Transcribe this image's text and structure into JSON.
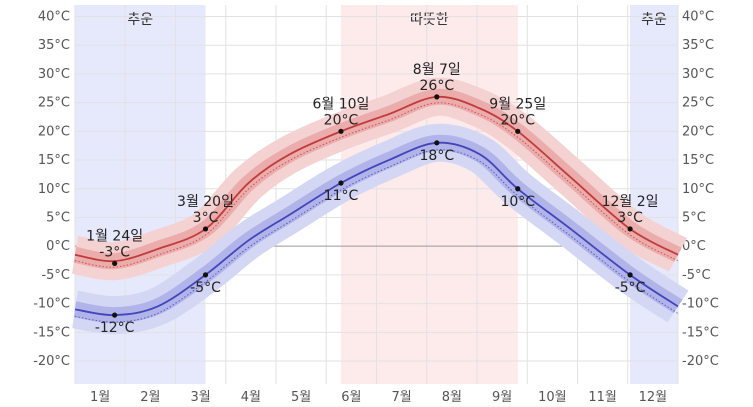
{
  "chart_data": {
    "type": "area",
    "title": "",
    "xlabel": "",
    "ylabel": "",
    "x_domain_days": [
      0,
      365
    ],
    "ylim": [
      -24,
      42
    ],
    "y_ticks": [
      40,
      35,
      30,
      25,
      20,
      15,
      10,
      5,
      0,
      -5,
      -10,
      -15,
      -20
    ],
    "y_unit": "°C",
    "month_labels": [
      "1월",
      "2월",
      "3월",
      "4월",
      "5월",
      "6월",
      "7월",
      "8월",
      "9월",
      "10월",
      "11월",
      "12월"
    ],
    "seasons": [
      {
        "label": "추운",
        "start_day": 0,
        "end_day": 79,
        "color": "#e6e8fb"
      },
      {
        "label": "따뜻한",
        "start_day": 161,
        "end_day": 268,
        "color": "#fdeaea"
      },
      {
        "label": "추운",
        "start_day": 336,
        "end_day": 365,
        "color": "#e6e8fb"
      }
    ],
    "series": [
      {
        "role": "high",
        "color": "#c23b3b",
        "band_inner": "#e9a6a6",
        "band_outer": "#f5d2d2",
        "points": [
          [
            0,
            -1.5
          ],
          [
            24,
            -2.6
          ],
          [
            50,
            -0.5
          ],
          [
            79,
            3
          ],
          [
            105,
            11
          ],
          [
            130,
            16
          ],
          [
            161,
            20
          ],
          [
            190,
            23
          ],
          [
            219,
            26
          ],
          [
            245,
            24
          ],
          [
            268,
            20
          ],
          [
            300,
            12
          ],
          [
            336,
            3
          ],
          [
            365,
            -1.5
          ]
        ]
      },
      {
        "role": "low",
        "color": "#4444bb",
        "band_inner": "#a9aee6",
        "band_outer": "#d4d7f3",
        "points": [
          [
            0,
            -11
          ],
          [
            24,
            -12
          ],
          [
            50,
            -10.5
          ],
          [
            79,
            -5
          ],
          [
            105,
            1
          ],
          [
            130,
            5.5
          ],
          [
            161,
            11
          ],
          [
            190,
            15
          ],
          [
            219,
            18
          ],
          [
            245,
            16
          ],
          [
            268,
            10
          ],
          [
            300,
            3
          ],
          [
            336,
            -5
          ],
          [
            365,
            -10.5
          ]
        ]
      }
    ],
    "annotations": [
      {
        "series": "high",
        "day": 24,
        "value": -3,
        "date": "1월 24일",
        "temp": "-3°C",
        "pos": "above"
      },
      {
        "series": "low",
        "day": 24,
        "value": -12,
        "date": "",
        "temp": "-12°C",
        "pos": "below"
      },
      {
        "series": "high",
        "day": 79,
        "value": 3,
        "date": "3월 20일",
        "temp": "3°C",
        "pos": "above"
      },
      {
        "series": "low",
        "day": 79,
        "value": -5,
        "date": "",
        "temp": "-5°C",
        "pos": "below"
      },
      {
        "series": "high",
        "day": 161,
        "value": 20,
        "date": "6월 10일",
        "temp": "20°C",
        "pos": "above"
      },
      {
        "series": "low",
        "day": 161,
        "value": 11,
        "date": "",
        "temp": "11°C",
        "pos": "below"
      },
      {
        "series": "high",
        "day": 219,
        "value": 26,
        "date": "8월 7일",
        "temp": "26°C",
        "pos": "above"
      },
      {
        "series": "low",
        "day": 219,
        "value": 18,
        "date": "",
        "temp": "18°C",
        "pos": "below"
      },
      {
        "series": "high",
        "day": 268,
        "value": 20,
        "date": "9월 25일",
        "temp": "20°C",
        "pos": "above"
      },
      {
        "series": "low",
        "day": 268,
        "value": 10,
        "date": "",
        "temp": "10°C",
        "pos": "below"
      },
      {
        "series": "high",
        "day": 336,
        "value": 3,
        "date": "12월 2일",
        "temp": "3°C",
        "pos": "above"
      },
      {
        "series": "low",
        "day": 336,
        "value": -5,
        "date": "",
        "temp": "-5°C",
        "pos": "below"
      }
    ],
    "grid": true,
    "legend": "none"
  }
}
